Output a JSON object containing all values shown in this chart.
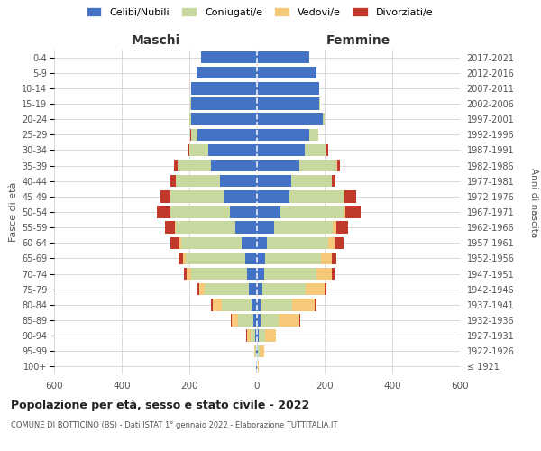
{
  "age_groups": [
    "100+",
    "95-99",
    "90-94",
    "85-89",
    "80-84",
    "75-79",
    "70-74",
    "65-69",
    "60-64",
    "55-59",
    "50-54",
    "45-49",
    "40-44",
    "35-39",
    "30-34",
    "25-29",
    "20-24",
    "15-19",
    "10-14",
    "5-9",
    "0-4"
  ],
  "birth_years": [
    "≤ 1921",
    "1922-1926",
    "1927-1931",
    "1932-1936",
    "1937-1941",
    "1942-1946",
    "1947-1951",
    "1952-1956",
    "1957-1961",
    "1962-1966",
    "1967-1971",
    "1972-1976",
    "1977-1981",
    "1982-1986",
    "1987-1991",
    "1992-1996",
    "1997-2001",
    "2002-2006",
    "2007-2011",
    "2012-2016",
    "2017-2021"
  ],
  "maschi_celibi": [
    2,
    2,
    5,
    10,
    15,
    25,
    30,
    35,
    45,
    65,
    80,
    100,
    110,
    135,
    145,
    175,
    195,
    195,
    195,
    180,
    165
  ],
  "maschi_coniugati": [
    2,
    4,
    15,
    45,
    90,
    130,
    165,
    175,
    180,
    175,
    175,
    155,
    130,
    100,
    55,
    20,
    5,
    2,
    0,
    0,
    0
  ],
  "maschi_vedovi": [
    0,
    2,
    10,
    20,
    25,
    15,
    12,
    8,
    5,
    3,
    2,
    1,
    1,
    0,
    0,
    0,
    0,
    0,
    0,
    0,
    0
  ],
  "maschi_divorziati": [
    0,
    0,
    2,
    2,
    5,
    5,
    10,
    15,
    25,
    30,
    40,
    30,
    15,
    10,
    5,
    2,
    1,
    0,
    0,
    0,
    0
  ],
  "femmine_celibi": [
    1,
    3,
    5,
    10,
    10,
    15,
    20,
    25,
    30,
    50,
    70,
    95,
    100,
    125,
    140,
    155,
    195,
    185,
    185,
    175,
    155
  ],
  "femmine_coniugati": [
    2,
    5,
    20,
    55,
    95,
    130,
    155,
    165,
    180,
    175,
    185,
    160,
    120,
    110,
    65,
    25,
    5,
    2,
    0,
    0,
    0
  ],
  "femmine_vedovi": [
    3,
    12,
    30,
    60,
    65,
    55,
    45,
    30,
    20,
    10,
    6,
    3,
    2,
    1,
    0,
    0,
    0,
    0,
    0,
    0,
    0
  ],
  "femmine_divorziati": [
    0,
    0,
    2,
    2,
    5,
    5,
    10,
    15,
    25,
    35,
    45,
    35,
    10,
    8,
    5,
    2,
    1,
    0,
    0,
    0,
    0
  ],
  "color_celibi": "#4472C4",
  "color_coniugati": "#c8d9a0",
  "color_vedovi": "#f5c87a",
  "color_divorziati": "#c0392b",
  "title": "Popolazione per età, sesso e stato civile - 2022",
  "subtitle": "COMUNE DI BOTTICINO (BS) - Dati ISTAT 1° gennaio 2022 - Elaborazione TUTTITALIA.IT",
  "xlabel_left": "Maschi",
  "xlabel_right": "Femmine",
  "ylabel_left": "Fasce di età",
  "ylabel_right": "Anni di nascita",
  "xlim": 600,
  "background_color": "#ffffff",
  "grid_color": "#cccccc"
}
